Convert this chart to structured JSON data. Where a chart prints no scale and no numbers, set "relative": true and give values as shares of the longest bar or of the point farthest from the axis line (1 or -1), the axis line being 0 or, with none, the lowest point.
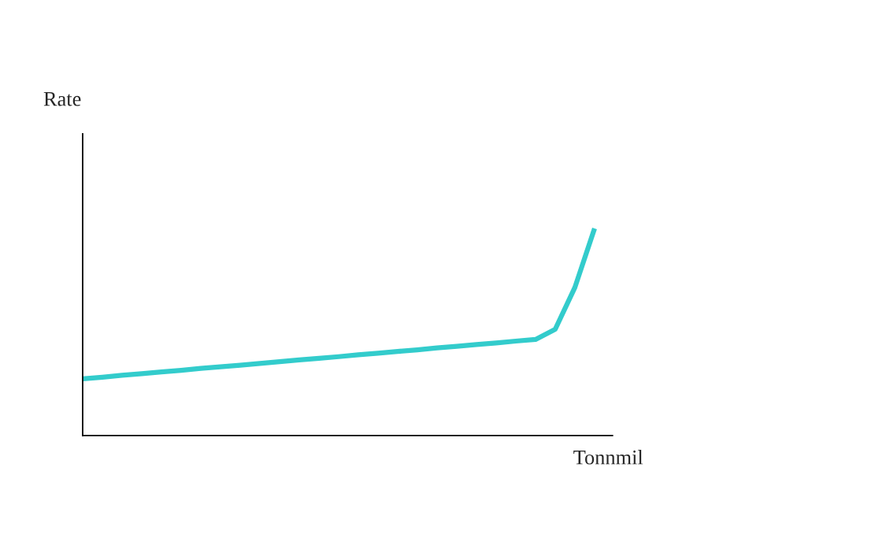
{
  "chart_data": {
    "type": "line",
    "xlabel": "Tonnmil",
    "annotations": [
      "Rate"
    ],
    "relative": true,
    "grid": false,
    "legend": false,
    "categories": [
      null,
      null,
      null,
      null,
      null,
      null,
      null,
      null,
      null,
      null,
      null,
      null,
      null,
      null,
      null,
      null,
      null,
      null,
      null,
      null,
      null,
      null,
      null,
      null,
      null,
      null,
      null
    ],
    "series": [
      {
        "color": "#33cccc",
        "values": [
          0.274,
          0.282,
          0.291,
          0.299,
          0.307,
          0.315,
          0.324,
          0.332,
          0.34,
          0.348,
          0.357,
          0.365,
          0.373,
          0.381,
          0.39,
          0.398,
          0.406,
          0.414,
          0.423,
          0.431,
          0.439,
          0.447,
          0.456,
          0.464,
          0.513,
          0.715,
          1.0
        ]
      }
    ]
  }
}
